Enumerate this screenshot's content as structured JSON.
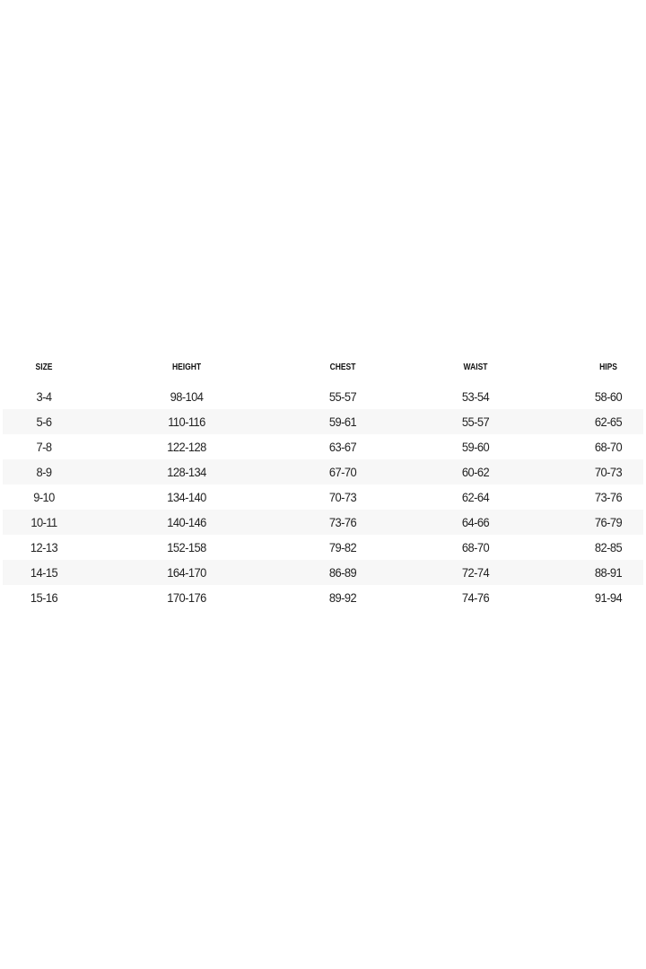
{
  "size_chart": {
    "headers": [
      "SIZE",
      "HEIGHT",
      "CHEST",
      "WAIST",
      "HIPS"
    ],
    "rows": [
      [
        "3-4",
        "98-104",
        "55-57",
        "53-54",
        "58-60"
      ],
      [
        "5-6",
        "110-116",
        "59-61",
        "55-57",
        "62-65"
      ],
      [
        "7-8",
        "122-128",
        "63-67",
        "59-60",
        "68-70"
      ],
      [
        "8-9",
        "128-134",
        "67-70",
        "60-62",
        "70-73"
      ],
      [
        "9-10",
        "134-140",
        "70-73",
        "62-64",
        "73-76"
      ],
      [
        "10-11",
        "140-146",
        "73-76",
        "64-66",
        "76-79"
      ],
      [
        "12-13",
        "152-158",
        "79-82",
        "68-70",
        "82-85"
      ],
      [
        "14-15",
        "164-170",
        "86-89",
        "72-74",
        "88-91"
      ],
      [
        "15-16",
        "170-176",
        "89-92",
        "74-76",
        "91-94"
      ]
    ],
    "stripe_color": "#f7f7f7"
  }
}
